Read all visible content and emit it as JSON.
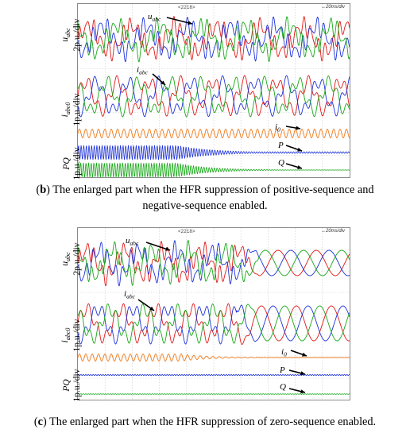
{
  "captions": {
    "b": {
      "letter": "b",
      "pre": "(",
      "post": ") The enlarged part when the HFR suppression of positive-sequence and",
      "line2": "negative-sequence enabled."
    },
    "c": {
      "letter": "c",
      "pre": "(",
      "post": ") The enlarged part when the HFR suppression of zero-sequence enabled."
    }
  },
  "chart_data": [
    {
      "type": "line",
      "id": "b",
      "header": {
        "tag": "<2218>",
        "zoom": "↔20ms/div"
      },
      "axis_labels": [
        {
          "var": "u",
          "sub": "abc",
          "scale": "2p.u./div"
        },
        {
          "var": "i",
          "sub": "abc0",
          "scale": "1p.u./div"
        },
        {
          "var": "PQ",
          "sub": "",
          "scale": "1p.u./div"
        }
      ],
      "traces": [
        {
          "name": "u",
          "sub": "abc",
          "colors": [
            "#e01919",
            "#1e32d8",
            "#17a817"
          ],
          "stage": "distorted"
        },
        {
          "name": "i",
          "sub": "abc",
          "colors": [
            "#e01919",
            "#1e32d8",
            "#17a817"
          ],
          "stage": "distorted"
        },
        {
          "name": "i",
          "sub": "0",
          "colors": [
            "#f07a1a"
          ],
          "stage": "steady-oscillation"
        },
        {
          "name": "P",
          "sub": "",
          "colors": [
            "#1e32d8"
          ],
          "stage": "decaying-oscillation"
        },
        {
          "name": "Q",
          "sub": "",
          "colors": [
            "#17a817"
          ],
          "stage": "decaying-oscillation"
        }
      ],
      "grid": true
    },
    {
      "type": "line",
      "id": "c",
      "header": {
        "tag": "<2218>",
        "zoom": "↔20ms/div"
      },
      "axis_labels": [
        {
          "var": "u",
          "sub": "abc",
          "scale": "2p.u./div"
        },
        {
          "var": "i",
          "sub": "abc0",
          "scale": "1p.u./div"
        },
        {
          "var": "PQ",
          "sub": "",
          "scale": "1p.u./div"
        }
      ],
      "traces": [
        {
          "name": "u",
          "sub": "abc",
          "colors": [
            "#e01919",
            "#1e32d8",
            "#17a817"
          ],
          "stage": "distorted-then-sinusoidal"
        },
        {
          "name": "i",
          "sub": "abc",
          "colors": [
            "#e01919",
            "#1e32d8",
            "#17a817"
          ],
          "stage": "distorted-then-sinusoidal"
        },
        {
          "name": "i",
          "sub": "0",
          "colors": [
            "#f07a1a"
          ],
          "stage": "decaying-oscillation"
        },
        {
          "name": "P",
          "sub": "",
          "colors": [
            "#1e32d8"
          ],
          "stage": "flat"
        },
        {
          "name": "Q",
          "sub": "",
          "colors": [
            "#17a817"
          ],
          "stage": "flat"
        }
      ],
      "grid": true
    }
  ],
  "colors": {
    "phase_a": "#e01919",
    "phase_b": "#1e32d8",
    "phase_c": "#17a817",
    "zero_seq": "#f07a1a"
  }
}
